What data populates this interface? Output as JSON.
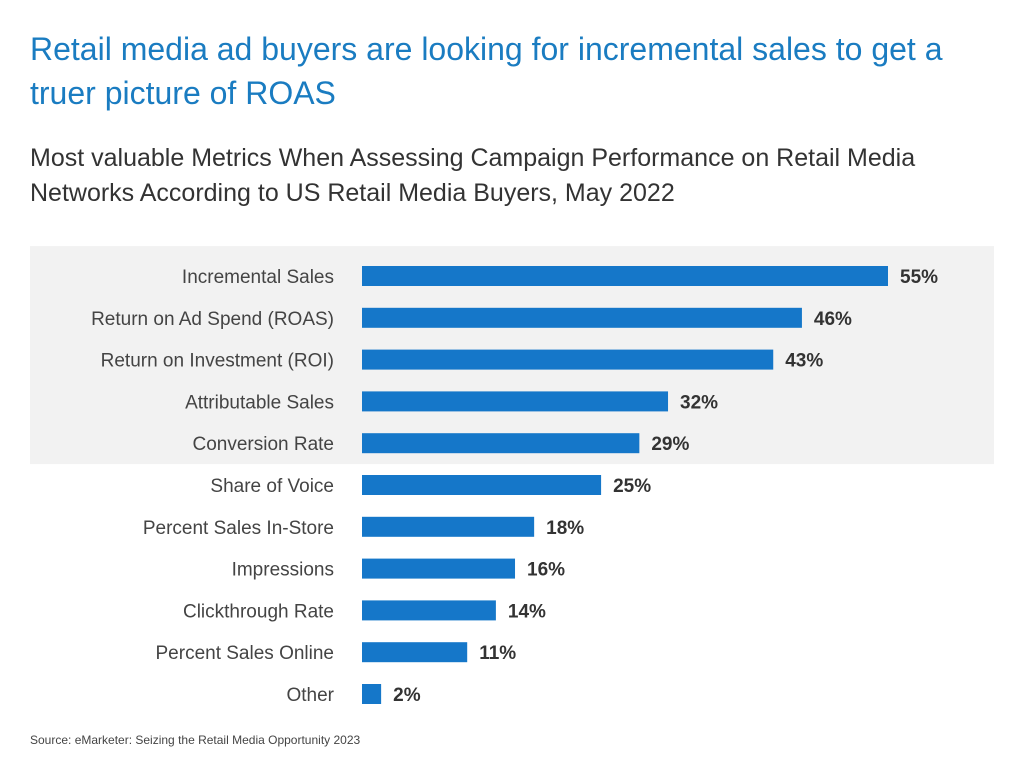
{
  "headline": "Retail media ad buyers are looking for incremental sales to get a truer picture of ROAS",
  "source": "Source: eMarketer: Seizing the Retail Media Opportunity 2023",
  "colors": {
    "bar": "#1577c9",
    "highlight_band": "#f2f2f2",
    "headline": "#1a7cc1",
    "label": "#444444",
    "value": "#333333"
  },
  "chart_data": {
    "type": "bar",
    "orientation": "horizontal",
    "title": "Most valuable Metrics When Assessing Campaign Performance on Retail Media Networks According to US Retail Media Buyers, May 2022",
    "xlabel": "",
    "ylabel": "",
    "xlim": [
      0,
      55
    ],
    "grid": false,
    "legend": "none",
    "highlighted_top": 5,
    "categories": [
      "Incremental Sales",
      "Return on Ad Spend (ROAS)",
      "Return on Investment (ROI)",
      "Attributable Sales",
      "Conversion Rate",
      "Share of Voice",
      "Percent Sales In-Store",
      "Impressions",
      "Clickthrough Rate",
      "Percent Sales Online",
      "Other"
    ],
    "values": [
      55,
      46,
      43,
      32,
      29,
      25,
      18,
      16,
      14,
      11,
      2
    ],
    "value_labels": [
      "55%",
      "46%",
      "43%",
      "32%",
      "29%",
      "25%",
      "18%",
      "16%",
      "14%",
      "11%",
      "2%"
    ]
  }
}
